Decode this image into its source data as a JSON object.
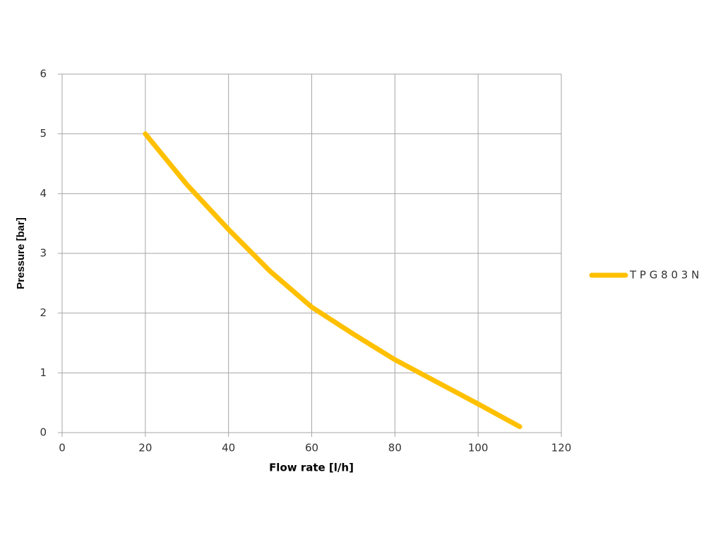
{
  "chart_data": {
    "type": "line",
    "x_label": "Flow rate [l/h]",
    "y_label": "Pressure [bar]",
    "x": [
      20,
      30,
      40,
      50,
      60,
      70,
      80,
      90,
      100,
      110
    ],
    "series": [
      {
        "name": "T P G 8 0 3 N",
        "color": "#ffc000",
        "values": [
          5,
          4.15,
          3.4,
          2.7,
          2.1,
          1.65,
          1.22,
          0.85,
          0.48,
          0.1
        ]
      }
    ],
    "xlim": [
      0,
      120
    ],
    "xticks": [
      0,
      20,
      40,
      60,
      80,
      100,
      120
    ],
    "ylim": [
      0,
      6
    ],
    "yticks": [
      0,
      1,
      2,
      3,
      4,
      5,
      6
    ],
    "grid": true,
    "legend": "right"
  }
}
